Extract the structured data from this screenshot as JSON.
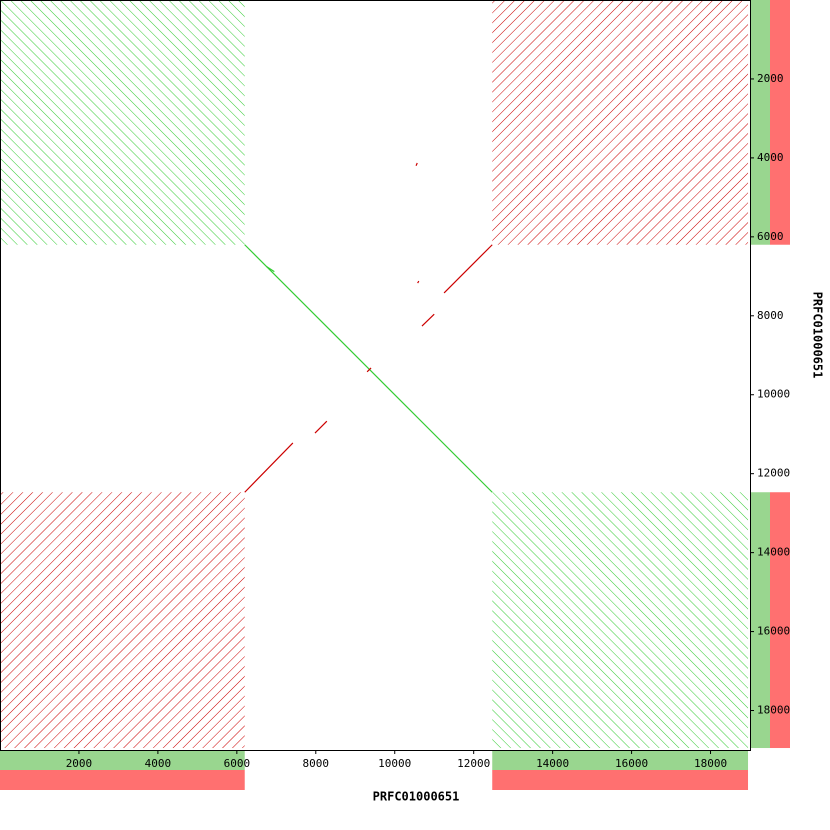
{
  "chart_data": {
    "type": "dotplot",
    "x_label": "PRFC01000651",
    "y_label": "PRFC01000651",
    "xlim": [
      0,
      19000
    ],
    "ylim": [
      0,
      19000
    ],
    "xticks": [
      2000,
      4000,
      6000,
      8000,
      10000,
      12000,
      14000,
      16000,
      18000
    ],
    "yticks": [
      2000,
      4000,
      6000,
      8000,
      10000,
      12000,
      14000,
      16000,
      18000
    ],
    "forward_color": "#33cc33",
    "reverse_color": "#cc0000",
    "forward_track_color": "#99d68f",
    "reverse_track_color": "#ff7070",
    "repeat_regions": [
      [
        0,
        6200
      ],
      [
        12470,
        18950
      ]
    ],
    "segments": [
      {
        "strand": "forward",
        "x": [
          6200,
          12470
        ],
        "y": [
          6200,
          12470
        ]
      },
      {
        "strand": "forward",
        "x": [
          6750,
          6950
        ],
        "y": [
          6750,
          6880
        ]
      },
      {
        "strand": "reverse",
        "x": [
          6200,
          7420
        ],
        "y": [
          12470,
          11220
        ]
      },
      {
        "strand": "reverse",
        "x": [
          7980,
          8280
        ],
        "y": [
          10970,
          10670
        ]
      },
      {
        "strand": "reverse",
        "x": [
          9300,
          9400
        ],
        "y": [
          9420,
          9320
        ]
      },
      {
        "strand": "reverse",
        "x": [
          10690,
          11000
        ],
        "y": [
          8260,
          7960
        ]
      },
      {
        "strand": "reverse",
        "x": [
          11250,
          12470
        ],
        "y": [
          7420,
          6200
        ]
      },
      {
        "strand": "reverse",
        "x": [
          10540,
          10570
        ],
        "y": [
          4200,
          4130
        ]
      },
      {
        "strand": "reverse",
        "x": [
          10580,
          10610
        ],
        "y": [
          7170,
          7120
        ]
      }
    ]
  }
}
